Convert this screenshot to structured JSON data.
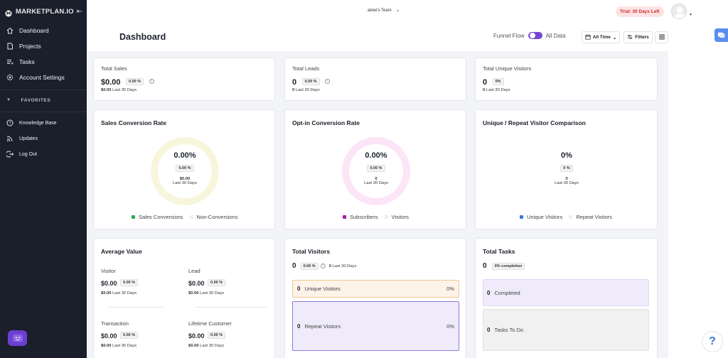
{
  "sidebar": {
    "brand": "MARKETPLAN.IO",
    "items": [
      {
        "label": "Dashboard"
      },
      {
        "label": "Projects"
      },
      {
        "label": "Tasks"
      },
      {
        "label": "Account Settings"
      }
    ],
    "favorites_label": "FAVORITES",
    "bottom_items": [
      {
        "label": "Knowledge Base"
      },
      {
        "label": "Updates"
      },
      {
        "label": "Log Out"
      }
    ]
  },
  "header": {
    "team": "akiwi's Team",
    "trial": "Trial: 30 Days Left",
    "title": "Dashboard",
    "toggle_left": "Funnel Flow",
    "toggle_right": "All Data",
    "time_filter": "All Time",
    "filters": "Filters"
  },
  "stats": {
    "sales": {
      "label": "Total Sales",
      "value": "$0.00",
      "pill": "0.00 %",
      "sub_value": "$0.00",
      "sub_label": "Last 30 Days"
    },
    "leads": {
      "label": "Total Leads",
      "value": "0",
      "pill": "0.00 %",
      "sub_value": "0",
      "sub_label": "Last 30 Days"
    },
    "visitors": {
      "label": "Total Unique Visitors",
      "value": "0",
      "pill": "0%",
      "sub_value": "0",
      "sub_label": "Last 30 Days"
    }
  },
  "sales_conversion": {
    "title": "Sales Conversion Rate",
    "center": "0.00%",
    "pill": "0.00 %",
    "sub": "$0.00",
    "sub_label": "Last 30 Days",
    "legend_a": "Sales Conversions",
    "legend_b": "Non-Conversions"
  },
  "optin_conversion": {
    "title": "Opt-in Conversion Rate",
    "center": "0.00%",
    "pill": "0.00 %",
    "sub": "0",
    "sub_label": "Last 30 Days",
    "legend_a": "Subscribers",
    "legend_b": "Visitors"
  },
  "unique_repeat": {
    "title": "Unique / Repeat Visitor Comparison",
    "center": "0%",
    "pill": "0 %",
    "sub": "0",
    "sub_label": "Last 30 Days",
    "legend_a": "Unique Visitors",
    "legend_b": "Repeat Visitors"
  },
  "average_value": {
    "title": "Average Value",
    "items": [
      {
        "label": "Visitor",
        "value": "$0.00",
        "pill": "0.00 %",
        "sub": "$0.00",
        "sub_label": "Last 30 Days"
      },
      {
        "label": "Lead",
        "value": "$0.00",
        "pill": "0.00 %",
        "sub": "$0.00",
        "sub_label": "Last 30 Days"
      },
      {
        "label": "Transaction",
        "value": "$0.00",
        "pill": "0.00 %",
        "sub": "$0.00",
        "sub_label": "Last 30 Days"
      },
      {
        "label": "Lifetime Customer",
        "value": "$0.00",
        "pill": "0.00 %",
        "sub": "$0.00",
        "sub_label": "Last 30 Days"
      }
    ]
  },
  "total_visitors": {
    "title": "Total Visitors",
    "value": "0",
    "pill": "0.00 %",
    "sub": "0",
    "sub_label": "Last 30 Days",
    "rows": [
      {
        "count": "0",
        "label": "Unique Visitors",
        "pct": "0%"
      },
      {
        "count": "0",
        "label": "Repeat Visitors",
        "pct": "0%"
      }
    ]
  },
  "total_tasks": {
    "title": "Total Tasks",
    "value": "0",
    "pill": "0% completion",
    "rows": [
      {
        "count": "0",
        "label": "Completed"
      },
      {
        "count": "0",
        "label": "Tasks To Do"
      }
    ]
  },
  "colors": {
    "sidebar": "#1b1f2b",
    "accent": "#7445d4",
    "sales_donut": "#f7f6dc",
    "optin_donut": "#fbe5f7",
    "sales_dot": "#2fa84f",
    "optin_dot": "#a41da6",
    "unique_dot": "#3c78d8"
  },
  "help_label": "?"
}
